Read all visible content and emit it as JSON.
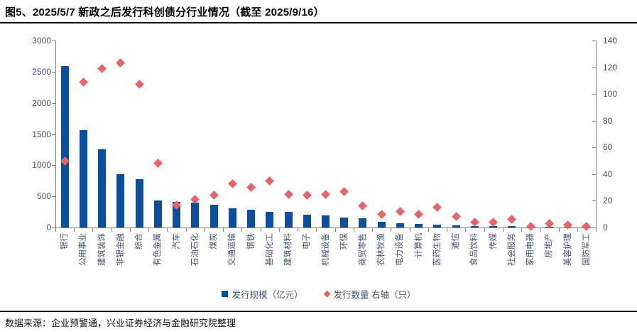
{
  "page": {
    "figure_title": "图5、2025/5/7 新政之后发行科创债分行业情况（截至 2025/9/16）",
    "data_source": "数据来源：企业预警通，兴业证券经济与金融研究院整理"
  },
  "chart_data": {
    "type": "bar",
    "subtype": "combo-bar-scatter-dual-axis",
    "title": "图5、2025/5/7 新政之后发行科创债分行业情况（截至 2025/9/16）",
    "categories": [
      "银行",
      "公用事业",
      "建筑装饰",
      "非银金融",
      "综合",
      "有色金属",
      "汽车",
      "石油石化",
      "煤炭",
      "交通运输",
      "钢铁",
      "基础化工",
      "建筑材料",
      "电子",
      "机械设备",
      "环保",
      "商贸零售",
      "农林牧渔",
      "电力设备",
      "计算机",
      "医药生物",
      "通信",
      "食品饮料",
      "传媒",
      "社会服务",
      "家用电器",
      "房地产",
      "美容护理",
      "国防军工"
    ],
    "series": [
      {
        "name": "发行规模（亿元）",
        "type": "bar",
        "axis": "left",
        "color": "#0D4EA1",
        "values": [
          2590,
          1565,
          1255,
          855,
          775,
          430,
          410,
          400,
          370,
          305,
          285,
          255,
          250,
          200,
          190,
          160,
          145,
          95,
          70,
          60,
          42,
          38,
          28,
          20,
          18,
          5,
          12,
          4,
          2
        ]
      },
      {
        "name": "发行数量 右轴（只）",
        "type": "scatter",
        "marker": "diamond",
        "axis": "right",
        "color": "#E8646A",
        "values": [
          50,
          109,
          119,
          123,
          107,
          48,
          17,
          21,
          24,
          33,
          30,
          35,
          25,
          24,
          25,
          27,
          16,
          10,
          12,
          10,
          15,
          8,
          4,
          4,
          6,
          1,
          3,
          2,
          1
        ]
      }
    ],
    "left_axis": {
      "min": 0,
      "max": 3000,
      "tick_step": 500
    },
    "right_axis": {
      "min": 0,
      "max": 140,
      "tick_step": 20
    },
    "grid": false,
    "legend_position": "bottom",
    "axis_color": "#7f7f7f",
    "label_color": "#44546A"
  }
}
